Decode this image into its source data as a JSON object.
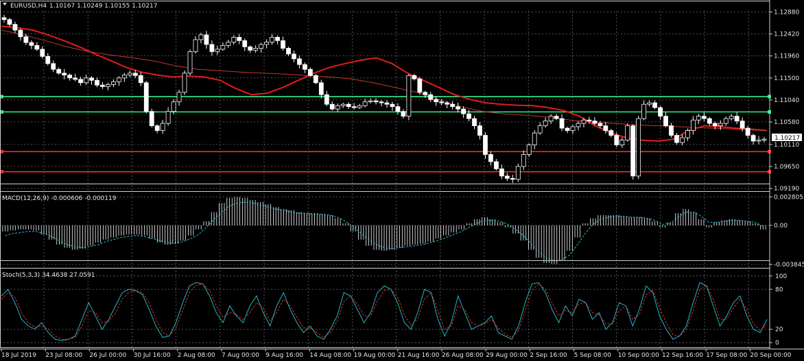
{
  "window": {
    "symbol": "EURUSD,H4",
    "ohlc": "1.10167 1.10249 1.10155 1.10217"
  },
  "colors": {
    "background": "#000000",
    "grid": "#6b6b6b",
    "frame": "#cfcfcf",
    "bull": "#ffffff",
    "bear": "#ffffff",
    "ma_fast": "#e51b1b",
    "ma_slow": "#c0392b",
    "level_green": "#2ff08f",
    "level_red": "#ff2a2a",
    "macd_hist": "#ffffff",
    "macd_signal": "#20c0d0",
    "stoch_main": "#20b8c8",
    "stoch_signal": "#e03030"
  },
  "chart_data": [
    {
      "type": "candlestick",
      "title": "EURUSD,H4",
      "price_axis_labels": [
        "1.12880",
        "1.12420",
        "1.11960",
        "1.11500",
        "1.11040",
        "1.10580",
        "1.10110",
        "1.09650",
        "1.09190"
      ],
      "ylim": [
        1.0912,
        1.129
      ],
      "current_price_label": "1.10217",
      "x_labels": [
        "18 Jul 2019",
        "23 Jul 08:00",
        "26 Jul 00:00",
        "30 Jul 16:00",
        "2 Aug 08:00",
        "7 Aug 00:00",
        "9 Aug 16:00",
        "14 Aug 08:00",
        "19 Aug 00:00",
        "21 Aug 16:00",
        "26 Aug 08:00",
        "29 Aug 00:00",
        "2 Sep 16:00",
        "5 Sep 08:00",
        "10 Sep 00:00",
        "12 Sep 16:00",
        "17 Sep 08:00",
        "20 Sep 00:00"
      ],
      "horizontal_levels": [
        {
          "price": 1.1111,
          "color": "green"
        },
        {
          "price": 1.1079,
          "color": "green"
        },
        {
          "price": 1.0996,
          "color": "red"
        },
        {
          "price": 1.0954,
          "color": "red"
        }
      ],
      "close_path": [
        1.1272,
        1.1262,
        1.125,
        1.1236,
        1.1224,
        1.1218,
        1.121,
        1.1195,
        1.118,
        1.1168,
        1.116,
        1.1156,
        1.115,
        1.1147,
        1.114,
        1.115,
        1.1145,
        1.1135,
        1.1132,
        1.1136,
        1.1142,
        1.115,
        1.1156,
        1.116,
        1.1155,
        1.114,
        1.108,
        1.105,
        1.104,
        1.1055,
        1.108,
        1.11,
        1.112,
        1.116,
        1.1205,
        1.123,
        1.124,
        1.122,
        1.1205,
        1.121,
        1.1218,
        1.1225,
        1.1235,
        1.1228,
        1.1215,
        1.1208,
        1.1212,
        1.122,
        1.1225,
        1.1235,
        1.1228,
        1.1212,
        1.12,
        1.119,
        1.1178,
        1.1168,
        1.1155,
        1.114,
        1.1115,
        1.1095,
        1.1085,
        1.1092,
        1.1095,
        1.109,
        1.1088,
        1.1092,
        1.11,
        1.1102,
        1.11,
        1.1098,
        1.1095,
        1.109,
        1.108,
        1.107,
        1.1155,
        1.1148,
        1.112,
        1.1115,
        1.1105,
        1.11,
        1.1098,
        1.1095,
        1.109,
        1.1085,
        1.1075,
        1.1065,
        1.105,
        1.103,
        1.099,
        1.0975,
        1.096,
        1.0945,
        1.094,
        1.0938,
        1.0965,
        1.099,
        1.101,
        1.1035,
        1.105,
        1.106,
        1.107,
        1.1065,
        1.1045,
        1.104,
        1.1048,
        1.1055,
        1.1062,
        1.106,
        1.1055,
        1.105,
        1.104,
        1.103,
        1.101,
        1.102,
        1.105,
        1.0945,
        1.1065,
        1.1095,
        1.1098,
        1.1088,
        1.107,
        1.105,
        1.103,
        1.1015,
        1.1025,
        1.104,
        1.1062,
        1.107,
        1.1065,
        1.1055,
        1.105,
        1.1055,
        1.1065,
        1.107,
        1.106,
        1.1045,
        1.103,
        1.1018,
        1.102,
        1.1022
      ],
      "series": [
        {
          "name": "",
          "kind": "moving_average_fast",
          "values": [
            1.1258,
            1.1255,
            1.125,
            1.124,
            1.1228,
            1.1215,
            1.12,
            1.1186,
            1.1172,
            1.1162,
            1.1156,
            1.1152,
            1.1154,
            1.1152,
            1.1145,
            1.1128,
            1.1115,
            1.1118,
            1.113,
            1.1145,
            1.116,
            1.1172,
            1.118,
            1.1187,
            1.1192,
            1.118,
            1.116,
            1.1145,
            1.113,
            1.1115,
            1.1105,
            1.1098,
            1.1095,
            1.1093,
            1.1092,
            1.1088,
            1.1082,
            1.107,
            1.105,
            1.1035,
            1.1025,
            1.102,
            1.1018,
            1.1022,
            1.104,
            1.105,
            1.1048,
            1.1045,
            1.1043,
            1.104
          ]
        },
        {
          "name": "",
          "kind": "moving_average_slow",
          "values": [
            1.125,
            1.124,
            1.1228,
            1.1215,
            1.1205,
            1.1198,
            1.1192,
            1.1185,
            1.1175,
            1.1168,
            1.1165,
            1.1162,
            1.116,
            1.1158,
            1.1155,
            1.1152,
            1.1148,
            1.114,
            1.113,
            1.112,
            1.1105,
            1.109,
            1.108,
            1.1075,
            1.1072,
            1.1068,
            1.1062,
            1.1058,
            1.1055,
            1.1052,
            1.105,
            1.1048,
            1.1046,
            1.1044,
            1.1042,
            1.104
          ]
        }
      ]
    },
    {
      "type": "histogram",
      "title": "MACD(12,26,9) -0.000606 -0.000119",
      "axis_labels": [
        "0.002805",
        "0.00",
        "-0.003845"
      ],
      "ylim": [
        -0.00425,
        0.0031
      ],
      "histogram": [
        -0.0006,
        -0.0005,
        -0.0004,
        -0.0004,
        -0.0005,
        -0.0009,
        -0.0014,
        -0.0019,
        -0.0022,
        -0.0024,
        -0.0023,
        -0.002,
        -0.0017,
        -0.0014,
        -0.0012,
        -0.001,
        -0.0009,
        -0.0009,
        -0.001,
        -0.0013,
        -0.0017,
        -0.0019,
        -0.0018,
        -0.0015,
        -0.001,
        -0.0004,
        0.0004,
        0.0013,
        0.0022,
        0.0027,
        0.0028,
        0.0027,
        0.0025,
        0.0023,
        0.0021,
        0.0018,
        0.0016,
        0.0015,
        0.0013,
        0.0012,
        0.0012,
        0.0011,
        0.001,
        0.0007,
        0.0002,
        -0.0006,
        -0.0014,
        -0.002,
        -0.0024,
        -0.0025,
        -0.0024,
        -0.0022,
        -0.002,
        -0.0019,
        -0.0018,
        -0.0016,
        -0.0013,
        -0.001,
        -0.0007,
        -0.0004,
        0.0002,
        0.0006,
        0.0008,
        0.0006,
        0.0003,
        -0.0002,
        -0.0008,
        -0.0015,
        -0.0024,
        -0.0032,
        -0.0037,
        -0.0038,
        -0.0034,
        -0.0025,
        -0.0012,
        0.0002,
        0.0007,
        0.001,
        0.001,
        0.001,
        0.0009,
        0.0008,
        0.0008,
        0.0007,
        0.0004,
        -0.0002,
        0.0003,
        0.0012,
        0.0016,
        0.0013,
        0.0006,
        -0.0002,
        0.0003,
        0.0005,
        0.0006,
        0.0005,
        0.0004,
        0.0002,
        -0.0004
      ],
      "signal": [
        -0.001,
        -0.0008,
        -0.0007,
        -0.0006,
        -0.0006,
        -0.0008,
        -0.0011,
        -0.0015,
        -0.0019,
        -0.0021,
        -0.0022,
        -0.0021,
        -0.0019,
        -0.0016,
        -0.0014,
        -0.0012,
        -0.0011,
        -0.001,
        -0.0011,
        -0.0013,
        -0.0015,
        -0.0017,
        -0.0018,
        -0.0016,
        -0.0013,
        -0.0009,
        -0.0002,
        0.0006,
        0.0013,
        0.0019,
        0.0022,
        0.0023,
        0.0022,
        0.002,
        0.0018,
        0.0016,
        0.0015,
        0.0013,
        0.0012,
        0.0012,
        0.0011,
        0.0011,
        0.001,
        0.0008,
        0.0004,
        -0.0001,
        -0.0008,
        -0.0014,
        -0.0019,
        -0.0022,
        -0.0023,
        -0.0022,
        -0.0021,
        -0.002,
        -0.0019,
        -0.0017,
        -0.0015,
        -0.0012,
        -0.0009,
        -0.0006,
        -0.0002,
        0.0002,
        0.0005,
        0.0005,
        0.0004,
        0.0001,
        -0.0004,
        -0.001,
        -0.0018,
        -0.0026,
        -0.0032,
        -0.0035,
        -0.0034,
        -0.0029,
        -0.0019,
        -0.0008,
        0.0001,
        0.0006,
        0.0008,
        0.0009,
        0.0009,
        0.0008,
        0.0008,
        0.0007,
        0.0005,
        0.0001,
        0.0002,
        0.0008,
        0.0013,
        0.0013,
        0.0009,
        0.0003,
        0.0003,
        0.0004,
        0.0005,
        0.0005,
        0.0004,
        0.0003,
        -0.0001
      ]
    },
    {
      "type": "line",
      "title": "Stoch(5,3,3) 34.4638 27.0591",
      "axis_labels": [
        "100",
        "80",
        "20",
        "0"
      ],
      "ylim": [
        -8,
        108
      ],
      "levels": [
        80,
        20
      ],
      "series": [
        {
          "name": "",
          "kind": "stoch_main",
          "values": [
            70,
            80,
            60,
            35,
            25,
            20,
            30,
            15,
            5,
            3,
            5,
            10,
            35,
            60,
            40,
            20,
            35,
            55,
            75,
            80,
            78,
            72,
            50,
            25,
            8,
            10,
            30,
            60,
            85,
            90,
            88,
            70,
            45,
            30,
            55,
            40,
            30,
            55,
            70,
            45,
            25,
            55,
            75,
            50,
            30,
            15,
            25,
            10,
            5,
            20,
            40,
            75,
            70,
            50,
            30,
            45,
            75,
            85,
            80,
            60,
            30,
            20,
            45,
            80,
            75,
            35,
            10,
            30,
            70,
            45,
            20,
            25,
            30,
            40,
            15,
            10,
            5,
            25,
            60,
            88,
            90,
            75,
            50,
            30,
            55,
            40,
            65,
            60,
            35,
            45,
            20,
            30,
            60,
            55,
            25,
            50,
            85,
            75,
            40,
            20,
            5,
            10,
            25,
            60,
            90,
            85,
            55,
            25,
            40,
            60,
            70,
            40,
            20,
            15,
            35
          ]
        },
        {
          "name": "",
          "kind": "stoch_signal",
          "values": [
            65,
            75,
            68,
            45,
            30,
            23,
            25,
            20,
            10,
            5,
            5,
            8,
            25,
            48,
            45,
            30,
            32,
            45,
            65,
            75,
            78,
            75,
            60,
            35,
            15,
            10,
            22,
            48,
            75,
            86,
            88,
            78,
            55,
            38,
            45,
            42,
            35,
            45,
            60,
            52,
            33,
            45,
            65,
            55,
            38,
            22,
            22,
            15,
            8,
            15,
            32,
            62,
            70,
            58,
            40,
            40,
            62,
            78,
            80,
            68,
            42,
            26,
            36,
            65,
            75,
            48,
            20,
            25,
            55,
            50,
            30,
            25,
            28,
            35,
            22,
            13,
            8,
            18,
            48,
            78,
            88,
            80,
            60,
            40,
            48,
            45,
            58,
            60,
            45,
            42,
            28,
            28,
            48,
            55,
            35,
            42,
            72,
            78,
            52,
            30,
            12,
            10,
            20,
            48,
            80,
            86,
            65,
            35,
            35,
            52,
            65,
            50,
            28,
            18,
            27
          ]
        }
      ]
    }
  ]
}
